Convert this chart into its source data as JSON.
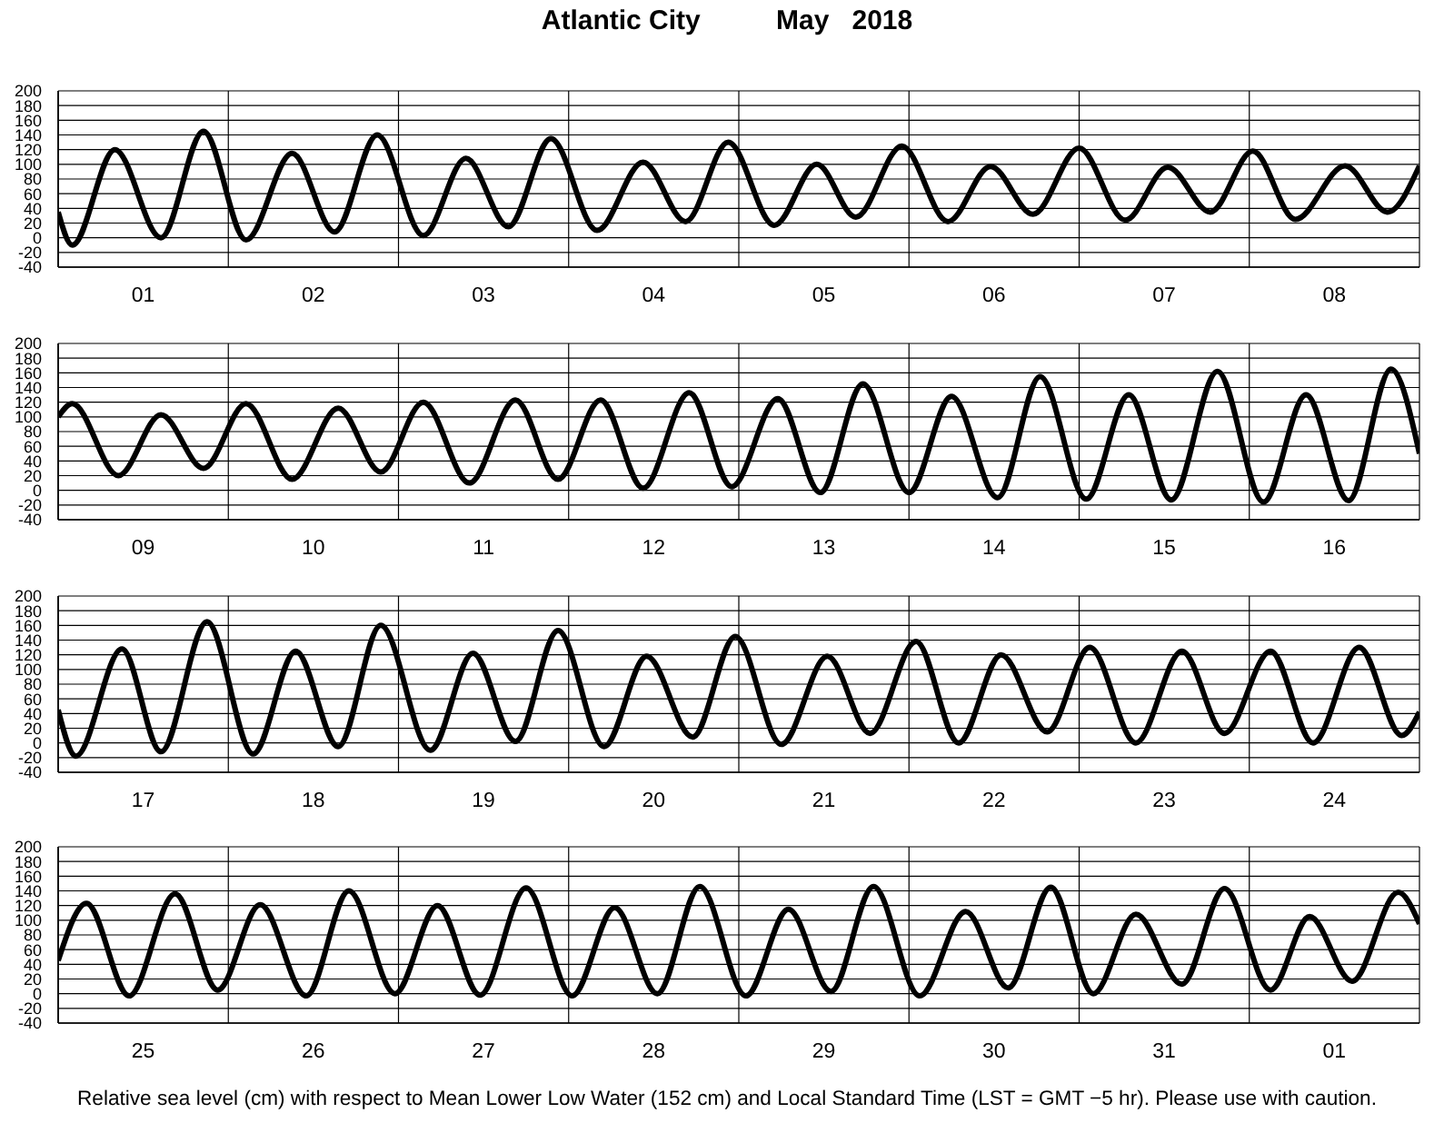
{
  "chart_data": [
    {
      "type": "line",
      "title": "Atlantic City          May   2018",
      "color": "#000000",
      "grid": true,
      "ylim": [
        -40,
        200
      ],
      "yticks": [
        -40,
        -20,
        0,
        20,
        40,
        60,
        80,
        100,
        120,
        140,
        160,
        180,
        200
      ],
      "xlim": [
        "2018-05-01T00:00",
        "2018-05-09T00:00"
      ],
      "xticks": [
        {
          "value": "2018-05-01T00:00",
          "label": null
        },
        {
          "value": "2018-05-01T12:00",
          "label": "01"
        },
        {
          "value": "2018-05-02T00:00",
          "label": null
        },
        {
          "value": "2018-05-02T12:00",
          "label": "02"
        },
        {
          "value": "2018-05-03T00:00",
          "label": null
        },
        {
          "value": "2018-05-03T12:00",
          "label": "03"
        },
        {
          "value": "2018-05-04T00:00",
          "label": null
        },
        {
          "value": "2018-05-04T12:00",
          "label": "04"
        },
        {
          "value": "2018-05-05T00:00",
          "label": null
        },
        {
          "value": "2018-05-05T12:00",
          "label": "05"
        },
        {
          "value": "2018-05-06T00:00",
          "label": null
        },
        {
          "value": "2018-05-06T12:00",
          "label": "06"
        },
        {
          "value": "2018-05-07T00:00",
          "label": null
        },
        {
          "value": "2018-05-07T12:00",
          "label": "07"
        },
        {
          "value": "2018-05-08T00:00",
          "label": null
        },
        {
          "value": "2018-05-08T12:00",
          "label": "08"
        },
        {
          "value": "2018-05-09T00:00",
          "label": null
        }
      ],
      "x": [
        "2018-05-01T00:00",
        "2018-05-01T02:00",
        "2018-05-01T08:00",
        "2018-05-01T14:30",
        "2018-05-01T20:30",
        "2018-05-02T02:30",
        "2018-05-02T09:00",
        "2018-05-02T15:00",
        "2018-05-02T21:00",
        "2018-05-03T03:30",
        "2018-05-03T09:30",
        "2018-05-03T15:30",
        "2018-05-03T21:30",
        "2018-05-04T04:00",
        "2018-05-04T10:30",
        "2018-05-04T16:30",
        "2018-05-04T22:30",
        "2018-05-05T05:00",
        "2018-05-05T11:00",
        "2018-05-05T16:30",
        "2018-05-05T23:00",
        "2018-05-06T05:30",
        "2018-05-06T11:30",
        "2018-05-06T17:30",
        "2018-05-07T00:00",
        "2018-05-07T06:30",
        "2018-05-07T12:30",
        "2018-05-07T18:30",
        "2018-05-08T00:30",
        "2018-05-08T06:30",
        "2018-05-08T13:30",
        "2018-05-08T19:30",
        "2018-05-09T00:00"
      ],
      "values": [
        35,
        -10,
        120,
        0,
        145,
        -3,
        115,
        8,
        140,
        3,
        108,
        15,
        135,
        10,
        103,
        22,
        130,
        17,
        100,
        28,
        125,
        22,
        97,
        32,
        122,
        24,
        96,
        35,
        118,
        25,
        98,
        35,
        98
      ]
    },
    {
      "type": "line",
      "color": "#000000",
      "grid": true,
      "ylim": [
        -40,
        200
      ],
      "yticks": [
        -40,
        -20,
        0,
        20,
        40,
        60,
        80,
        100,
        120,
        140,
        160,
        180,
        200
      ],
      "xlim": [
        "2018-05-09T00:00",
        "2018-05-17T00:00"
      ],
      "xticks": [
        {
          "value": "2018-05-09T00:00",
          "label": null
        },
        {
          "value": "2018-05-09T12:00",
          "label": "09"
        },
        {
          "value": "2018-05-10T00:00",
          "label": null
        },
        {
          "value": "2018-05-10T12:00",
          "label": "10"
        },
        {
          "value": "2018-05-11T00:00",
          "label": null
        },
        {
          "value": "2018-05-11T12:00",
          "label": "11"
        },
        {
          "value": "2018-05-12T00:00",
          "label": null
        },
        {
          "value": "2018-05-12T12:00",
          "label": "12"
        },
        {
          "value": "2018-05-13T00:00",
          "label": null
        },
        {
          "value": "2018-05-13T12:00",
          "label": "13"
        },
        {
          "value": "2018-05-14T00:00",
          "label": null
        },
        {
          "value": "2018-05-14T12:00",
          "label": "14"
        },
        {
          "value": "2018-05-15T00:00",
          "label": null
        },
        {
          "value": "2018-05-15T12:00",
          "label": "15"
        },
        {
          "value": "2018-05-16T00:00",
          "label": null
        },
        {
          "value": "2018-05-16T12:00",
          "label": "16"
        },
        {
          "value": "2018-05-17T00:00",
          "label": null
        }
      ],
      "x": [
        "2018-05-09T00:00",
        "2018-05-09T02:00",
        "2018-05-09T08:30",
        "2018-05-09T14:30",
        "2018-05-09T20:30",
        "2018-05-10T02:30",
        "2018-05-10T09:00",
        "2018-05-10T15:30",
        "2018-05-10T21:30",
        "2018-05-11T03:30",
        "2018-05-11T10:00",
        "2018-05-11T16:30",
        "2018-05-11T22:30",
        "2018-05-12T04:30",
        "2018-05-12T10:30",
        "2018-05-12T17:00",
        "2018-05-12T23:00",
        "2018-05-13T05:30",
        "2018-05-13T11:30",
        "2018-05-13T17:30",
        "2018-05-14T00:00",
        "2018-05-14T06:00",
        "2018-05-14T12:30",
        "2018-05-14T18:30",
        "2018-05-15T01:00",
        "2018-05-15T07:00",
        "2018-05-15T13:00",
        "2018-05-15T19:30",
        "2018-05-16T02:00",
        "2018-05-16T08:00",
        "2018-05-16T14:00",
        "2018-05-16T20:00",
        "2018-05-17T00:00"
      ],
      "values": [
        100,
        118,
        20,
        103,
        30,
        118,
        15,
        112,
        25,
        120,
        10,
        123,
        15,
        123,
        3,
        133,
        5,
        125,
        -3,
        145,
        -3,
        128,
        -10,
        155,
        -12,
        130,
        -13,
        162,
        -16,
        130,
        -14,
        165,
        50
      ]
    },
    {
      "type": "line",
      "color": "#000000",
      "grid": true,
      "ylim": [
        -40,
        200
      ],
      "yticks": [
        -40,
        -20,
        0,
        20,
        40,
        60,
        80,
        100,
        120,
        140,
        160,
        180,
        200
      ],
      "xlim": [
        "2018-05-17T00:00",
        "2018-05-25T00:00"
      ],
      "xticks": [
        {
          "value": "2018-05-17T00:00",
          "label": null
        },
        {
          "value": "2018-05-17T12:00",
          "label": "17"
        },
        {
          "value": "2018-05-18T00:00",
          "label": null
        },
        {
          "value": "2018-05-18T12:00",
          "label": "18"
        },
        {
          "value": "2018-05-19T00:00",
          "label": null
        },
        {
          "value": "2018-05-19T12:00",
          "label": "19"
        },
        {
          "value": "2018-05-20T00:00",
          "label": null
        },
        {
          "value": "2018-05-20T12:00",
          "label": "20"
        },
        {
          "value": "2018-05-21T00:00",
          "label": null
        },
        {
          "value": "2018-05-21T12:00",
          "label": "21"
        },
        {
          "value": "2018-05-22T00:00",
          "label": null
        },
        {
          "value": "2018-05-22T12:00",
          "label": "22"
        },
        {
          "value": "2018-05-23T00:00",
          "label": null
        },
        {
          "value": "2018-05-23T12:00",
          "label": "23"
        },
        {
          "value": "2018-05-24T00:00",
          "label": null
        },
        {
          "value": "2018-05-24T12:00",
          "label": "24"
        },
        {
          "value": "2018-05-25T00:00",
          "label": null
        }
      ],
      "x": [
        "2018-05-17T00:00",
        "2018-05-17T02:30",
        "2018-05-17T09:00",
        "2018-05-17T14:30",
        "2018-05-17T21:00",
        "2018-05-18T03:30",
        "2018-05-18T09:30",
        "2018-05-18T15:30",
        "2018-05-18T21:30",
        "2018-05-19T04:30",
        "2018-05-19T10:30",
        "2018-05-19T16:30",
        "2018-05-19T22:30",
        "2018-05-20T05:00",
        "2018-05-20T11:00",
        "2018-05-20T17:30",
        "2018-05-20T23:30",
        "2018-05-21T06:00",
        "2018-05-21T12:30",
        "2018-05-21T18:30",
        "2018-05-22T01:00",
        "2018-05-22T07:00",
        "2018-05-22T13:00",
        "2018-05-22T19:30",
        "2018-05-23T01:30",
        "2018-05-23T08:00",
        "2018-05-23T14:30",
        "2018-05-23T20:30",
        "2018-05-24T03:00",
        "2018-05-24T09:00",
        "2018-05-24T15:30",
        "2018-05-24T21:30",
        "2018-05-25T00:00"
      ],
      "values": [
        45,
        -18,
        128,
        -12,
        165,
        -15,
        125,
        -5,
        160,
        -10,
        122,
        2,
        153,
        -5,
        118,
        8,
        145,
        -2,
        118,
        13,
        138,
        0,
        120,
        15,
        130,
        0,
        125,
        13,
        125,
        0,
        130,
        10,
        42
      ]
    },
    {
      "type": "line",
      "color": "#000000",
      "grid": true,
      "ylim": [
        -40,
        200
      ],
      "yticks": [
        -40,
        -20,
        0,
        20,
        40,
        60,
        80,
        100,
        120,
        140,
        160,
        180,
        200
      ],
      "xlim": [
        "2018-05-25T00:00",
        "2018-06-02T00:00"
      ],
      "xticks": [
        {
          "value": "2018-05-25T00:00",
          "label": null
        },
        {
          "value": "2018-05-25T12:00",
          "label": "25"
        },
        {
          "value": "2018-05-26T00:00",
          "label": null
        },
        {
          "value": "2018-05-26T12:00",
          "label": "26"
        },
        {
          "value": "2018-05-27T00:00",
          "label": null
        },
        {
          "value": "2018-05-27T12:00",
          "label": "27"
        },
        {
          "value": "2018-05-28T00:00",
          "label": null
        },
        {
          "value": "2018-05-28T12:00",
          "label": "28"
        },
        {
          "value": "2018-05-29T00:00",
          "label": null
        },
        {
          "value": "2018-05-29T12:00",
          "label": "29"
        },
        {
          "value": "2018-05-30T00:00",
          "label": null
        },
        {
          "value": "2018-05-30T12:00",
          "label": "30"
        },
        {
          "value": "2018-05-31T00:00",
          "label": null
        },
        {
          "value": "2018-05-31T12:00",
          "label": "31"
        },
        {
          "value": "2018-06-01T00:00",
          "label": null
        },
        {
          "value": "2018-06-01T12:00",
          "label": "01"
        },
        {
          "value": "2018-06-02T00:00",
          "label": null
        }
      ],
      "x": [
        "2018-05-25T00:00",
        "2018-05-25T04:00",
        "2018-05-25T10:00",
        "2018-05-25T16:30",
        "2018-05-25T22:30",
        "2018-05-26T04:30",
        "2018-05-26T11:00",
        "2018-05-26T17:00",
        "2018-05-26T23:30",
        "2018-05-27T05:30",
        "2018-05-27T11:30",
        "2018-05-27T18:00",
        "2018-05-28T00:30",
        "2018-05-28T06:30",
        "2018-05-28T12:30",
        "2018-05-28T18:30",
        "2018-05-29T01:00",
        "2018-05-29T07:00",
        "2018-05-29T13:00",
        "2018-05-29T19:00",
        "2018-05-30T01:30",
        "2018-05-30T08:00",
        "2018-05-30T14:00",
        "2018-05-30T20:00",
        "2018-05-31T02:00",
        "2018-05-31T08:00",
        "2018-05-31T14:30",
        "2018-05-31T20:30",
        "2018-06-01T03:00",
        "2018-06-01T08:30",
        "2018-06-01T14:30",
        "2018-06-01T21:00",
        "2018-06-02T00:00"
      ],
      "values": [
        45,
        123,
        -3,
        136,
        5,
        121,
        -3,
        140,
        0,
        120,
        -2,
        144,
        -3,
        117,
        0,
        146,
        -3,
        115,
        3,
        146,
        -3,
        112,
        8,
        145,
        0,
        108,
        13,
        143,
        5,
        105,
        17,
        138,
        95
      ],
      "annotations": [
        "Relative sea level (cm) with respect to Mean Lower Low Water (152 cm) and Local Standard Time (LST = GMT −5 hr). Please use with caution."
      ]
    }
  ]
}
